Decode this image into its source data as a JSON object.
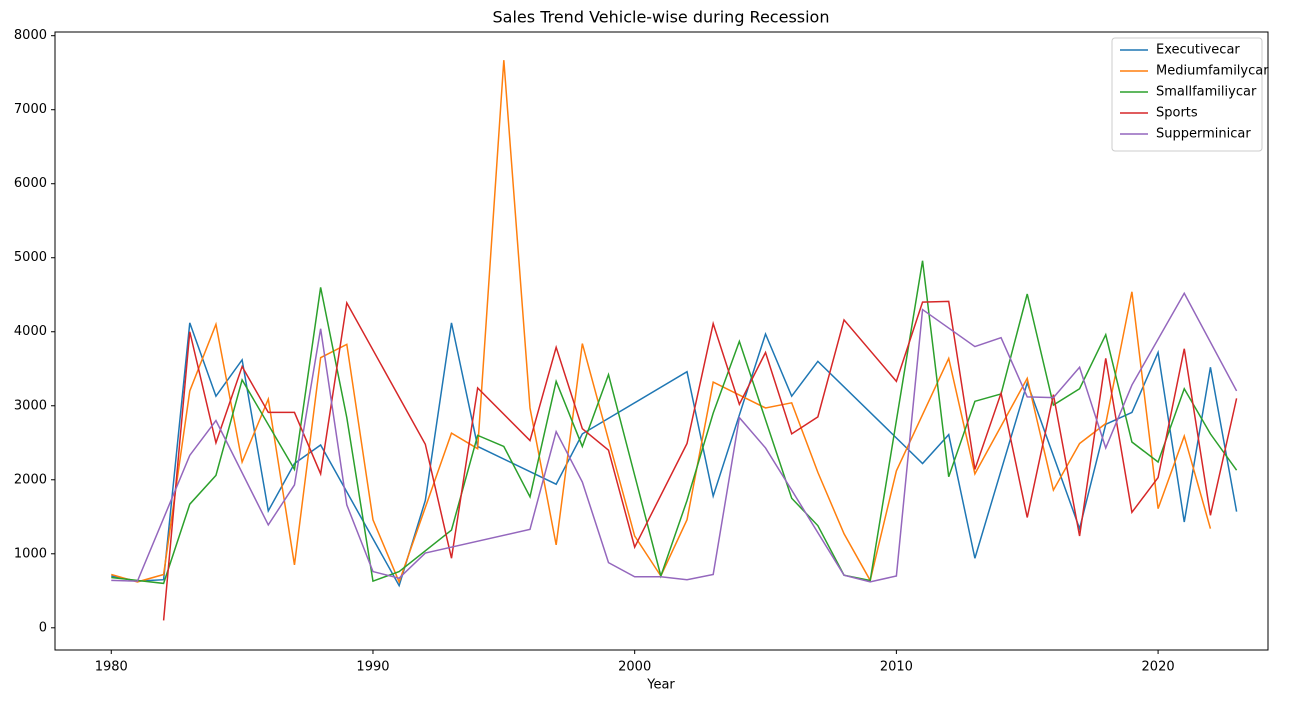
{
  "chart_data": {
    "type": "line",
    "title": "Sales Trend Vehicle-wise during Recession",
    "x_label": "Year",
    "xlim": [
      1977.85,
      2024.2
    ],
    "ylim": [
      -300,
      8050
    ],
    "xticks": [
      1980,
      1990,
      2000,
      2010,
      2020
    ],
    "yticks": [
      0,
      1000,
      2000,
      3000,
      4000,
      5000,
      6000,
      7000,
      8000
    ],
    "legend": "upper right",
    "series": [
      {
        "name": "Executivecar",
        "color": "#1f77b4",
        "x": [
          1980,
          1981,
          1982,
          1983,
          1984,
          1985,
          1986,
          1987,
          1988,
          1991,
          1992,
          1993,
          1994,
          1997,
          1998,
          2002,
          2003,
          2005,
          2006,
          2007,
          2011,
          2012,
          2013,
          2015,
          2017,
          2018,
          2019,
          2020,
          2021,
          2022,
          2023
        ],
        "values": [
          700,
          630,
          650,
          4120,
          3130,
          3620,
          1580,
          2220,
          2470,
          570,
          1720,
          4120,
          2450,
          1940,
          2620,
          3460,
          1780,
          3970,
          3130,
          3600,
          2220,
          2610,
          940,
          3310,
          1340,
          2750,
          2910,
          3720,
          1430,
          3520,
          1570
        ]
      },
      {
        "name": "Mediumfamilycar",
        "color": "#ff7f0e",
        "x": [
          1980,
          1981,
          1982,
          1983,
          1984,
          1985,
          1986,
          1987,
          1988,
          1989,
          1990,
          1991,
          1993,
          1994,
          1995,
          1996,
          1997,
          1998,
          2000,
          2001,
          2002,
          2003,
          2005,
          2006,
          2007,
          2008,
          2009,
          2010,
          2012,
          2013,
          2015,
          2016,
          2017,
          2018,
          2019,
          2020,
          2021,
          2022
        ],
        "values": [
          720,
          620,
          720,
          3200,
          4100,
          2240,
          3090,
          850,
          3650,
          3830,
          1460,
          620,
          2630,
          2420,
          7670,
          2970,
          1120,
          3840,
          1240,
          700,
          1460,
          3320,
          2970,
          3040,
          2100,
          1270,
          640,
          2120,
          3640,
          2080,
          3370,
          1860,
          2490,
          2760,
          4540,
          1610,
          2590,
          1340
        ]
      },
      {
        "name": "Smallfamiliycar",
        "color": "#2ca02c",
        "x": [
          1980,
          1982,
          1983,
          1984,
          1985,
          1987,
          1988,
          1989,
          1990,
          1991,
          1993,
          1994,
          1995,
          1996,
          1997,
          1998,
          1999,
          2001,
          2002,
          2003,
          2004,
          2006,
          2007,
          2008,
          2009,
          2011,
          2012,
          2013,
          2014,
          2015,
          2016,
          2017,
          2018,
          2019,
          2020,
          2021,
          2022,
          2023
        ],
        "values": [
          680,
          600,
          1670,
          2060,
          3350,
          2140,
          4600,
          2840,
          630,
          760,
          1320,
          2600,
          2450,
          1770,
          3330,
          2450,
          3420,
          700,
          1720,
          2900,
          3870,
          1750,
          1380,
          710,
          640,
          4960,
          2040,
          3060,
          3160,
          4510,
          3010,
          3230,
          3960,
          2510,
          2240,
          3230,
          2620,
          2130
        ]
      },
      {
        "name": "Sports",
        "color": "#d62728",
        "x": [
          1982,
          1983,
          1984,
          1985,
          1986,
          1987,
          1988,
          1989,
          1992,
          1993,
          1994,
          1996,
          1997,
          1998,
          1999,
          2000,
          2002,
          2003,
          2004,
          2005,
          2006,
          2007,
          2008,
          2010,
          2011,
          2012,
          2013,
          2014,
          2015,
          2016,
          2017,
          2018,
          2019,
          2020,
          2021,
          2022,
          2023
        ],
        "values": [
          100,
          4000,
          2500,
          3530,
          2910,
          2910,
          2080,
          4390,
          2480,
          940,
          3240,
          2530,
          3790,
          2690,
          2400,
          1090,
          2490,
          4110,
          3020,
          3720,
          2620,
          2850,
          4160,
          3330,
          4400,
          4410,
          2140,
          3170,
          1490,
          3150,
          1240,
          3640,
          1560,
          2030,
          3770,
          1520,
          3100
        ]
      },
      {
        "name": "Supperminicar",
        "color": "#9467bd",
        "x": [
          1980,
          1981,
          1983,
          1984,
          1986,
          1987,
          1988,
          1989,
          1990,
          1991,
          1992,
          1996,
          1997,
          1998,
          1999,
          2000,
          2001,
          2002,
          2003,
          2004,
          2005,
          2006,
          2008,
          2009,
          2010,
          2011,
          2013,
          2014,
          2015,
          2016,
          2017,
          2018,
          2019,
          2021,
          2023
        ],
        "values": [
          640,
          630,
          2330,
          2800,
          1390,
          1930,
          4040,
          1660,
          760,
          670,
          1010,
          1330,
          2650,
          1970,
          880,
          690,
          690,
          650,
          720,
          2840,
          2430,
          1860,
          710,
          620,
          700,
          4300,
          3800,
          3920,
          3120,
          3110,
          3520,
          2430,
          3280,
          4520,
          3200
        ]
      }
    ]
  }
}
